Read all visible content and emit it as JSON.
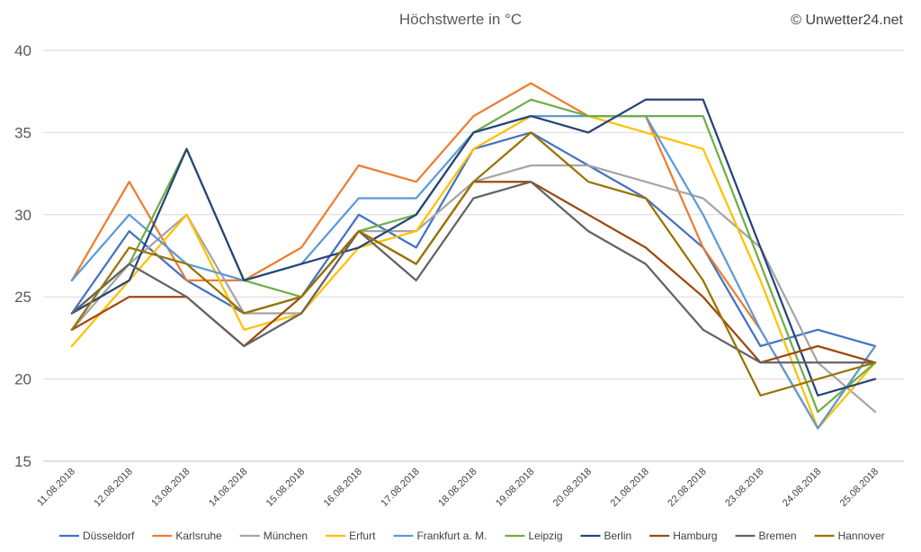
{
  "copyright": "© Unwetter24.net",
  "chart_data": {
    "type": "line",
    "title": "Höchstwerte in °C",
    "xlabel": "",
    "ylabel": "",
    "ylim": [
      15,
      40
    ],
    "yticks": [
      15,
      20,
      25,
      30,
      35,
      40
    ],
    "grid": true,
    "legend_position": "bottom",
    "categories": [
      "11.08.2018",
      "12.08.2018",
      "13.08.2018",
      "14.08.2018",
      "15.08.2018",
      "16.08.2018",
      "17.08.2018",
      "18.08.2018",
      "19.08.2018",
      "20.08.2018",
      "21.08.2018",
      "22.08.2018",
      "23.08.2018",
      "24.08.2018",
      "25.08.2018"
    ],
    "series": [
      {
        "name": "Düsseldorf",
        "color": "#4472C4",
        "values": [
          24,
          29,
          26,
          24,
          25,
          30,
          28,
          34,
          35,
          33,
          31,
          28,
          22,
          23,
          22
        ]
      },
      {
        "name": "Karlsruhe",
        "color": "#ED7D31",
        "values": [
          26,
          32,
          26,
          26,
          28,
          33,
          32,
          36,
          38,
          36,
          36,
          28,
          23,
          17,
          22
        ]
      },
      {
        "name": "München",
        "color": "#A5A5A5",
        "values": [
          23,
          27,
          30,
          24,
          24,
          29,
          29,
          32,
          33,
          33,
          32,
          31,
          28,
          21,
          18
        ]
      },
      {
        "name": "Erfurt",
        "color": "#FFC000",
        "values": [
          22,
          26,
          30,
          23,
          24,
          28,
          29,
          34,
          36,
          36,
          35,
          34,
          26,
          17,
          21
        ]
      },
      {
        "name": "Frankfurt a. M.",
        "color": "#5B9BD5",
        "values": [
          26,
          30,
          27,
          26,
          27,
          31,
          31,
          35,
          36,
          36,
          36,
          30,
          23,
          17,
          22
        ]
      },
      {
        "name": "Leipzig",
        "color": "#70AD47",
        "values": [
          24,
          27,
          34,
          26,
          25,
          29,
          30,
          35,
          37,
          36,
          36,
          36,
          27,
          18,
          21
        ]
      },
      {
        "name": "Berlin",
        "color": "#264478",
        "values": [
          24,
          26,
          34,
          26,
          27,
          28,
          30,
          35,
          36,
          35,
          37,
          37,
          28,
          19,
          20
        ]
      },
      {
        "name": "Hamburg",
        "color": "#9E480E",
        "values": [
          23,
          25,
          25,
          22,
          25,
          29,
          27,
          32,
          32,
          30,
          28,
          25,
          21,
          22,
          21
        ]
      },
      {
        "name": "Bremen",
        "color": "#636363",
        "values": [
          24,
          27,
          25,
          22,
          24,
          29,
          26,
          31,
          32,
          29,
          27,
          23,
          21,
          21,
          21
        ]
      },
      {
        "name": "Hannover",
        "color": "#997300",
        "values": [
          23,
          28,
          27,
          24,
          25,
          29,
          27,
          32,
          35,
          32,
          31,
          26,
          19,
          20,
          21
        ]
      }
    ]
  }
}
